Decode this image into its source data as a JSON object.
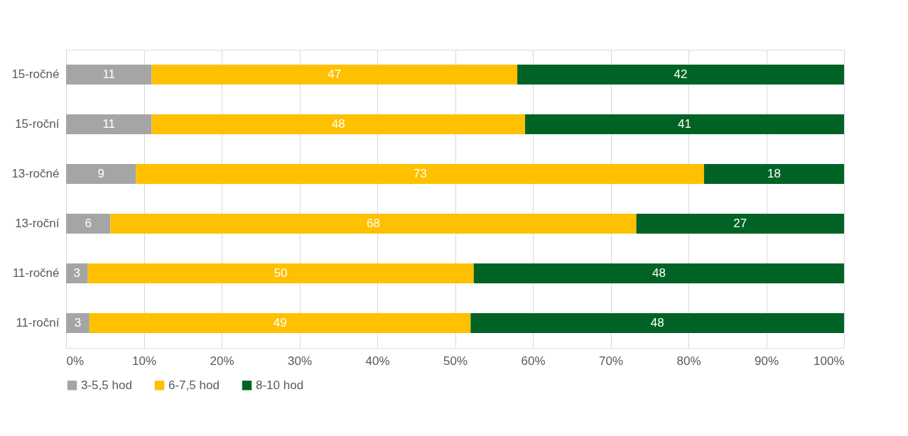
{
  "chart_data": {
    "type": "bar",
    "orientation": "horizontal",
    "stacked": true,
    "categories": [
      "15-ročné",
      "15-roční",
      "13-ročné",
      "13-roční",
      "11-ročné",
      "11-roční"
    ],
    "series": [
      {
        "name": "3-5,5 hod",
        "color": "#a5a5a5",
        "values": [
          11,
          11,
          9,
          5.7,
          2.8,
          3
        ],
        "value_labels": [
          "11",
          "11",
          "9",
          "6",
          "3",
          "3"
        ]
      },
      {
        "name": "6-7,5 hod",
        "color": "#ffc000",
        "values": [
          47,
          48,
          73,
          67.6,
          49.6,
          49
        ],
        "value_labels": [
          "47",
          "48",
          "73",
          "68",
          "50",
          "49"
        ]
      },
      {
        "name": "8-10 hod",
        "color": "#006325",
        "values": [
          42,
          41,
          18,
          26.7,
          47.6,
          48
        ],
        "value_labels": [
          "42",
          "41",
          "18",
          "27",
          "48",
          "48"
        ]
      }
    ],
    "xlim": [
      0,
      100
    ],
    "xticks": [
      {
        "value": 0,
        "label": "0%"
      },
      {
        "value": 10,
        "label": "10%"
      },
      {
        "value": 20,
        "label": "20%"
      },
      {
        "value": 30,
        "label": "30%"
      },
      {
        "value": 40,
        "label": "40%"
      },
      {
        "value": 50,
        "label": "50%"
      },
      {
        "value": 60,
        "label": "60%"
      },
      {
        "value": 70,
        "label": "70%"
      },
      {
        "value": 80,
        "label": "80%"
      },
      {
        "value": 90,
        "label": "90%"
      },
      {
        "value": 100,
        "label": "100%"
      }
    ],
    "grid": "x",
    "legend": "bottom"
  }
}
